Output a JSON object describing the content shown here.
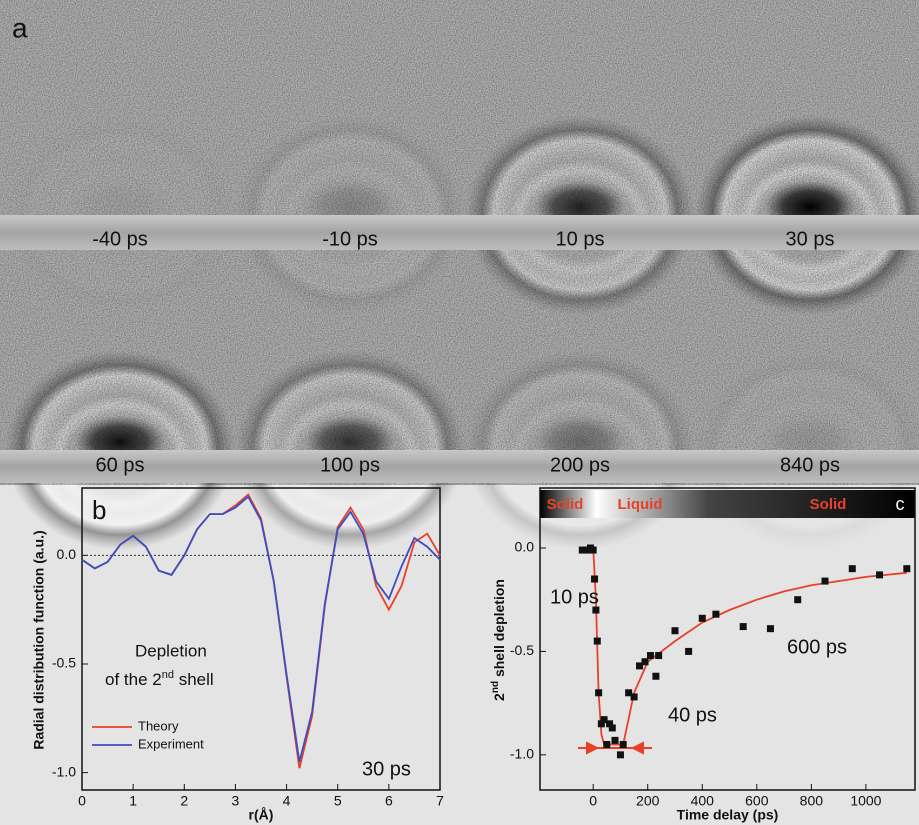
{
  "panel_a": {
    "label": "a",
    "frames": [
      "-40 ps",
      "-10 ps",
      "10 ps",
      "30 ps",
      "60 ps",
      "100 ps",
      "200 ps",
      "840 ps"
    ]
  },
  "chart_data": [
    {
      "type": "line",
      "panel_label": "b",
      "ylabel": "Radial distribution function (a.u.)",
      "xlabel": "r(Å)",
      "annotation": [
        "Depletion",
        "of the 2",
        "nd",
        " shell"
      ],
      "time_label": "30 ps",
      "x": [
        0,
        0.25,
        0.5,
        0.75,
        1,
        1.25,
        1.5,
        1.75,
        2,
        2.25,
        2.5,
        2.75,
        3,
        3.25,
        3.5,
        3.75,
        4,
        4.25,
        4.5,
        4.75,
        5,
        5.25,
        5.5,
        5.75,
        6,
        6.25,
        6.5,
        6.75,
        7
      ],
      "series": [
        {
          "name": "Theory",
          "color": "#e8412a",
          "values": [
            -0.02,
            -0.06,
            -0.03,
            0.05,
            0.09,
            0.04,
            -0.07,
            -0.09,
            0.0,
            0.12,
            0.19,
            0.19,
            0.23,
            0.28,
            0.17,
            -0.12,
            -0.56,
            -0.98,
            -0.74,
            -0.23,
            0.13,
            0.22,
            0.12,
            -0.14,
            -0.25,
            -0.14,
            0.06,
            0.1,
            0.0
          ]
        },
        {
          "name": "Experiment",
          "color": "#3a4fc0",
          "values": [
            -0.02,
            -0.06,
            -0.03,
            0.05,
            0.09,
            0.04,
            -0.07,
            -0.09,
            0.0,
            0.12,
            0.19,
            0.19,
            0.22,
            0.27,
            0.16,
            -0.12,
            -0.55,
            -0.95,
            -0.72,
            -0.22,
            0.12,
            0.2,
            0.1,
            -0.12,
            -0.2,
            -0.05,
            0.08,
            0.04,
            -0.02
          ]
        }
      ],
      "xlim": [
        0,
        7
      ],
      "xticks": [
        0,
        1,
        2,
        3,
        4,
        5,
        6,
        7
      ],
      "ylim": [
        -1.08,
        0.31
      ],
      "yticks": [
        {
          "value": 0,
          "label": "0.0"
        },
        {
          "value": -0.5,
          "label": "-0.5"
        },
        {
          "value": -1,
          "label": "-1.0"
        }
      ]
    },
    {
      "type": "scatter",
      "panel_label": "c",
      "ylabel": [
        "2",
        "nd",
        " shell depletion"
      ],
      "xlabel": "Time delay (ps)",
      "phase_labels": [
        "Solid",
        "Liquid",
        "Solid"
      ],
      "annotations": [
        "10 ps",
        "40 ps",
        "600 ps"
      ],
      "color": "#111111",
      "x": [
        -40,
        -25,
        -10,
        0,
        5,
        10,
        15,
        20,
        30,
        40,
        50,
        60,
        70,
        80,
        100,
        110,
        130,
        150,
        170,
        190,
        210,
        230,
        240,
        300,
        350,
        400,
        450,
        550,
        650,
        750,
        850,
        950,
        1050,
        1150
      ],
      "values": [
        -0.01,
        -0.01,
        0,
        -0.01,
        -0.15,
        -0.3,
        -0.45,
        -0.7,
        -0.85,
        -0.83,
        -0.95,
        -0.85,
        -0.87,
        -0.93,
        -1.0,
        -0.95,
        -0.7,
        -0.72,
        -0.57,
        -0.55,
        -0.52,
        -0.62,
        -0.52,
        -0.4,
        -0.5,
        -0.34,
        -0.32,
        -0.38,
        -0.39,
        -0.25,
        -0.16,
        -0.1,
        -0.13,
        -0.1
      ],
      "fit": {
        "color": "#e8412a",
        "x": [
          -50,
          0,
          10,
          20,
          30,
          40,
          110,
          150,
          200,
          300,
          400,
          500,
          600,
          700,
          800,
          900,
          1000,
          1150
        ],
        "values": [
          0,
          0,
          -0.25,
          -0.7,
          -0.9,
          -0.95,
          -0.95,
          -0.7,
          -0.55,
          -0.45,
          -0.36,
          -0.3,
          -0.25,
          -0.21,
          -0.18,
          -0.16,
          -0.14,
          -0.12
        ]
      },
      "xlim": [
        -195,
        1180
      ],
      "xticks": [
        0,
        200,
        400,
        600,
        800,
        1000
      ],
      "ylim": [
        -1.17,
        0.29
      ],
      "yticks": [
        {
          "value": 0,
          "label": "0.0"
        },
        {
          "value": -0.5,
          "label": "-0.5"
        },
        {
          "value": -1,
          "label": "-1.0"
        }
      ]
    }
  ]
}
